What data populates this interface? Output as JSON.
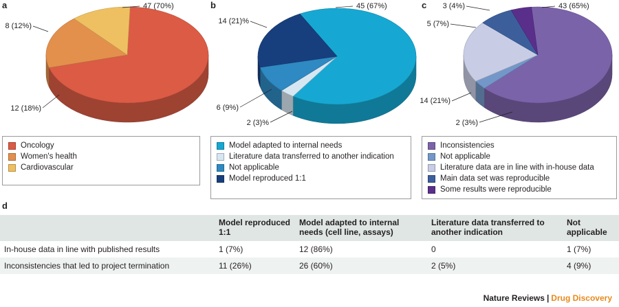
{
  "panels": {
    "a": "a",
    "b": "b",
    "c": "c",
    "d": "d"
  },
  "chart_data": [
    {
      "type": "pie",
      "title": "",
      "slices": [
        {
          "name": "Oncology",
          "value": 47,
          "label": "47 (70%)",
          "color": "#dc5b45"
        },
        {
          "name": "Women's health",
          "value": 12,
          "label": "12 (18%)",
          "color": "#e3904d"
        },
        {
          "name": "Cardiovascular",
          "value": 8,
          "label": "8 (12%)",
          "color": "#efc061"
        }
      ]
    },
    {
      "type": "pie",
      "title": "",
      "slices": [
        {
          "name": "Model adapted to internal needs",
          "value": 45,
          "label": "45 (67%)",
          "color": "#16a8d2"
        },
        {
          "name": "Literature data transferred to another indication",
          "value": 2,
          "label": "2 (3)%",
          "color": "#d7e7f2"
        },
        {
          "name": "Not applicable",
          "value": 6,
          "label": "6 (9%)",
          "color": "#2f89c2"
        },
        {
          "name": "Model reproduced 1:1",
          "value": 14,
          "label": "14 (21)%",
          "color": "#183f7d"
        }
      ]
    },
    {
      "type": "pie",
      "title": "",
      "slices": [
        {
          "name": "Inconsistencies",
          "value": 43,
          "label": "43 (65%)",
          "color": "#7b63aa"
        },
        {
          "name": "Not applicable",
          "value": 2,
          "label": "2 (3%)",
          "color": "#7397c8"
        },
        {
          "name": "Literature data are in line with in-house data",
          "value": 14,
          "label": "14 (21%)",
          "color": "#c8cde5"
        },
        {
          "name": "Main data set was reproducible",
          "value": 5,
          "label": "5 (7%)",
          "color": "#3c5f9c"
        },
        {
          "name": "Some results were reproducible",
          "value": 3,
          "label": "3 (4%)",
          "color": "#5a2f8c"
        }
      ]
    }
  ],
  "legends": [
    {
      "items": [
        {
          "label": "Oncology",
          "color": "#dc5b45"
        },
        {
          "label": "Women's health",
          "color": "#e3904d"
        },
        {
          "label": "Cardiovascular",
          "color": "#efc061"
        }
      ]
    },
    {
      "items": [
        {
          "label": "Model adapted to internal needs",
          "color": "#16a8d2"
        },
        {
          "label": "Literature data transferred to another indication",
          "color": "#d7e7f2"
        },
        {
          "label": "Not applicable",
          "color": "#2f89c2"
        },
        {
          "label": "Model reproduced 1:1",
          "color": "#183f7d"
        }
      ]
    },
    {
      "items": [
        {
          "label": "Inconsistencies",
          "color": "#7b63aa"
        },
        {
          "label": "Not applicable",
          "color": "#7397c8"
        },
        {
          "label": "Literature data are in line with in-house data",
          "color": "#c8cde5"
        },
        {
          "label": "Main data set was reproducible",
          "color": "#3c5f9c"
        },
        {
          "label": "Some results were reproducible",
          "color": "#5a2f8c"
        }
      ]
    }
  ],
  "table": {
    "headers": [
      "",
      "Model reproduced 1:1",
      "Model adapted to internal needs (cell line, assays)",
      "Literature data transferred to another indication",
      "Not applicable"
    ],
    "rows": [
      [
        "In-house data in line with published results",
        "1 (7%)",
        "12 (86%)",
        "0",
        "1 (7%)"
      ],
      [
        "Inconsistencies that led to project termination",
        "11 (26%)",
        "26 (60%)",
        "2 (5%)",
        "4 (9%)"
      ]
    ]
  },
  "footer": {
    "publisher": "Nature Reviews",
    "separator": "|",
    "journal": "Drug Discovery"
  }
}
